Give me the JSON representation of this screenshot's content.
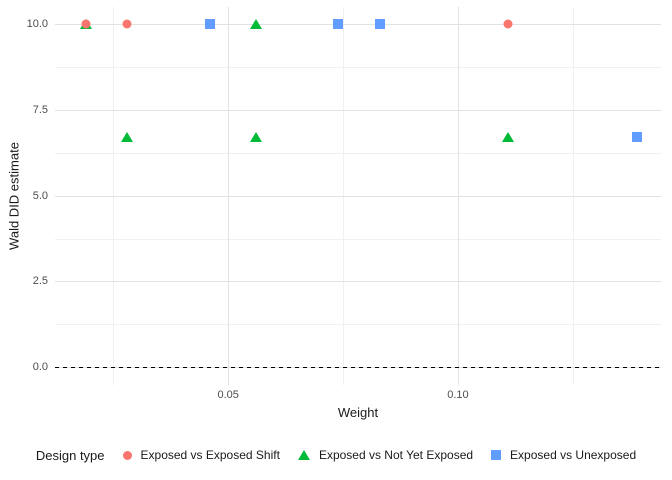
{
  "chart_data": {
    "type": "scatter",
    "title": "",
    "xlabel": "Weight",
    "ylabel": "Wald DID estimate",
    "xlim": [
      0.0123,
      0.1442
    ],
    "ylim": [
      -0.52,
      10.5
    ],
    "x_major_ticks": [
      0.05,
      0.1
    ],
    "x_tick_labels": [
      "0.05",
      "0.10"
    ],
    "x_minor_ticks": [
      0.025,
      0.075,
      0.125
    ],
    "y_major_ticks": [
      0,
      2.5,
      5,
      7.5,
      10
    ],
    "y_tick_labels": [
      "0.0",
      "2.5",
      "5.0",
      "7.5",
      "10.0"
    ],
    "y_minor_ticks": [
      1.25,
      3.75,
      6.25,
      8.75
    ],
    "grid": "major+minor",
    "reference_line": {
      "y": 0,
      "style": "dashed",
      "color": "#000000"
    },
    "legend": {
      "title": "Design type",
      "position": "bottom"
    },
    "series": [
      {
        "name": "Exposed vs Exposed Shift",
        "shape": "circle",
        "color": "#F8766D",
        "points": [
          [
            0.019,
            10
          ],
          [
            0.028,
            10
          ],
          [
            0.111,
            10
          ]
        ]
      },
      {
        "name": "Exposed vs Not Yet Exposed",
        "shape": "triangle",
        "color": "#00BA38",
        "points": [
          [
            0.019,
            10
          ],
          [
            0.056,
            10
          ],
          [
            0.028,
            6.7
          ],
          [
            0.056,
            6.7
          ],
          [
            0.111,
            6.7
          ]
        ]
      },
      {
        "name": "Exposed vs Unexposed",
        "shape": "square",
        "color": "#619CFF",
        "points": [
          [
            0.046,
            10
          ],
          [
            0.074,
            10
          ],
          [
            0.083,
            10
          ],
          [
            0.139,
            6.7
          ]
        ]
      }
    ]
  }
}
